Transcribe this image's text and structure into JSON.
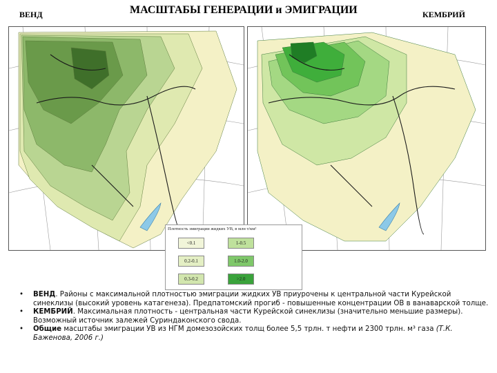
{
  "header": {
    "left_label": "ВЕНД",
    "title": "МАСШТАБЫ ГЕНЕРАЦИИ и ЭМИГРАЦИИ",
    "right_label": "КЕМБРИЙ"
  },
  "legend": {
    "title": "Плотность эмиграции жидких УВ, в млн т/км²",
    "items": [
      {
        "label": "<0.1",
        "color": "#f1f5d9"
      },
      {
        "label": "1-0.5",
        "color": "#bfe19c"
      },
      {
        "label": "0.2-0.1",
        "color": "#e4efc4"
      },
      {
        "label": "1.0-2.0",
        "color": "#7fc86a"
      },
      {
        "label": "0.3-0.2",
        "color": "#d2e6ae"
      },
      {
        "label": ">2.0",
        "color": "#3aa33b"
      }
    ]
  },
  "map_colors": {
    "vend": [
      "#f4f1c6",
      "#dfe9b0",
      "#b9d592",
      "#8db86a",
      "#6a9a4a",
      "#3f6f2a"
    ],
    "cambrian": [
      "#f4f1c6",
      "#cfe7a5",
      "#a4d883",
      "#72c45a",
      "#3fae3b",
      "#1f7d25"
    ]
  },
  "notes": [
    {
      "bold": "ВЕНД",
      "text": ". Районы с максимальной плотностью эмиграции жидких УВ приурочены к центральной части Курейской синеклизы (высокий уровень катагенеза). Предпатомский прогиб - повышенные концентрации ОВ в ванаварской толще."
    },
    {
      "bold": "КЕМБРИЙ",
      "text": ". Максимальная плотность - центральная части Курейской синеклизы (значительно меньшие размеры). Возможный источник залежей Суриндаконского свода."
    },
    {
      "bold": "Общие",
      "text": " масштабы эмиграции УВ из НГМ домезозойских толщ более 5,5 трлн. т нефти и 2300 трлн. м³ газа ",
      "citation": "(Т.К. Баженова, 2006 г.)"
    }
  ]
}
